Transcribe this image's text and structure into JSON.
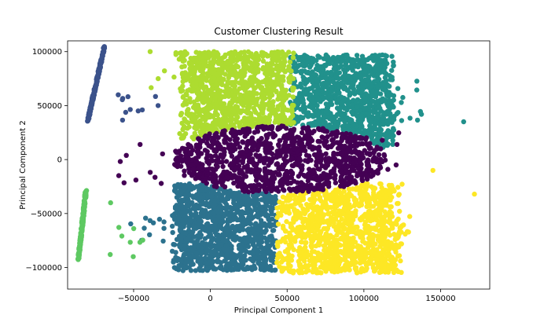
{
  "chart_data": {
    "type": "scatter",
    "title": "Customer Clustering Result",
    "xlabel": "Principal Component 1",
    "ylabel": "Principal Component 2",
    "xlim": [
      -93000,
      182000
    ],
    "ylim": [
      -120000,
      110000
    ],
    "xticks": [
      -50000,
      0,
      50000,
      100000,
      150000
    ],
    "yticks": [
      -100000,
      -50000,
      0,
      50000,
      100000
    ],
    "xtick_labels": [
      "−50000",
      "0",
      "50000",
      "100000",
      "150000"
    ],
    "ytick_labels": [
      "−100000",
      "−50000",
      "0",
      "50000",
      "100000"
    ],
    "grid": false,
    "legend": "none",
    "series": [
      {
        "color": "#440154",
        "region": "center ellipse",
        "center": [
          45000,
          0
        ],
        "extent_x": [
          -25000,
          115000
        ],
        "extent_y": [
          -30000,
          33000
        ]
      },
      {
        "color": "#3b528b",
        "region": "line upper",
        "line_from": [
          -80000,
          35000
        ],
        "line_to": [
          -69000,
          105000
        ]
      },
      {
        "color": "#2c728e",
        "region": "lower left",
        "extent_x": [
          -25000,
          43000
        ],
        "extent_y": [
          -103000,
          -22000
        ]
      },
      {
        "color": "#21918c",
        "region": "upper right",
        "extent_x": [
          52000,
          120000
        ],
        "extent_y": [
          10000,
          97000
        ]
      },
      {
        "color": "#5ec962",
        "region": "line lower",
        "line_from": [
          -86000,
          -93000
        ],
        "line_to": [
          -81000,
          -28000
        ]
      },
      {
        "color": "#addc30",
        "region": "upper left",
        "extent_x": [
          -20000,
          55000
        ],
        "extent_y": [
          18000,
          100000
        ]
      },
      {
        "color": "#fde725",
        "region": "lower right",
        "extent_x": [
          43000,
          125000
        ],
        "extent_y": [
          -105000,
          -22000
        ]
      }
    ]
  }
}
